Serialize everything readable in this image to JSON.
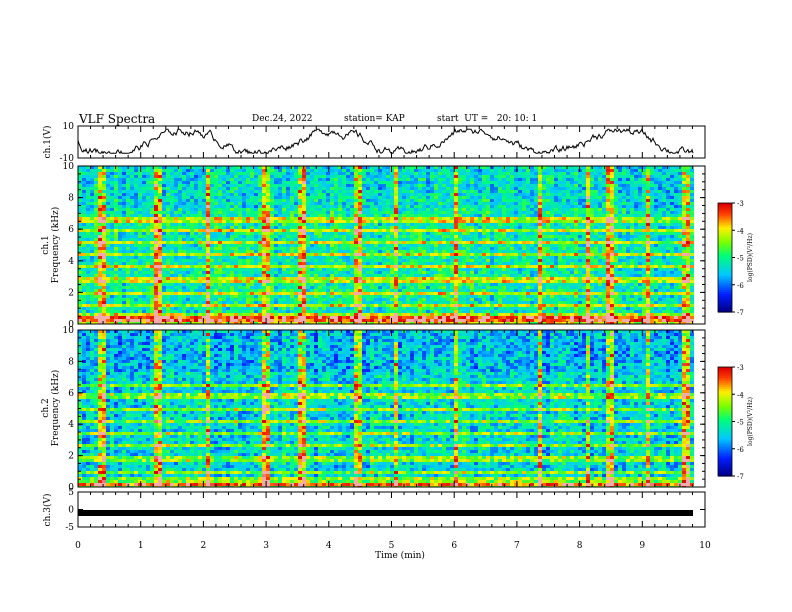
{
  "header": {
    "title": "VLF Spectra",
    "date": "Dec.24, 2022",
    "station": "station= KAP",
    "start": "start  UT =   20: 10: 1"
  },
  "chart_data": [
    {
      "type": "line",
      "panel": "ch1-waveform",
      "ylabel": "ch.1(V)",
      "ylim": [
        -10,
        10
      ],
      "yticks": [
        "10",
        "-10"
      ],
      "xlim": [
        0,
        9.85
      ],
      "description_note": "noisy waveform roughly between -6 and +7 V"
    },
    {
      "type": "heatmap",
      "panel": "ch1-spectrogram",
      "ylabel": "ch.1\nFrequency  (kHz)",
      "ylim": [
        0,
        10
      ],
      "yticks": [
        "0",
        "2",
        "4",
        "6",
        "8",
        "10"
      ],
      "xlim": [
        0,
        9.85
      ],
      "colorbar": {
        "label": "log(PSD)(V²/Hz)",
        "ticks": [
          "-3",
          "-4",
          "-5",
          "-6",
          "-7"
        ],
        "range": [
          -7,
          -3
        ]
      },
      "bands_khz": [
        0.4,
        1.2,
        2.0,
        2.9,
        3.7,
        4.5,
        5.3,
        6.0,
        6.7
      ],
      "impulse_times_min": [
        0.35,
        1.25,
        2.05,
        2.95,
        3.55,
        4.45,
        5.05,
        6.0,
        7.35,
        8.1,
        8.45,
        9.05,
        9.65
      ]
    },
    {
      "type": "heatmap",
      "panel": "ch2-spectrogram",
      "ylabel": "ch.2\nFrequency  (kHz)",
      "ylim": [
        0,
        10
      ],
      "yticks": [
        "0",
        "2",
        "4",
        "6",
        "8",
        "10"
      ],
      "xlim": [
        0,
        9.85
      ],
      "colorbar": {
        "label": "log(PSD)(V²/Hz)",
        "ticks": [
          "-3",
          "-4",
          "-5",
          "-6",
          "-7"
        ],
        "range": [
          -7,
          -3
        ]
      },
      "bands_khz": [
        0.3,
        1.0,
        1.9,
        2.8,
        3.5,
        4.2,
        5.0,
        5.9,
        6.5
      ],
      "impulse_times_min": [
        0.35,
        1.25,
        2.05,
        2.95,
        3.55,
        4.45,
        5.05,
        6.0,
        7.35,
        8.1,
        8.45,
        9.05,
        9.65
      ]
    },
    {
      "type": "line",
      "panel": "ch3-waveform",
      "ylabel": "ch.3(V)",
      "ylim": [
        -5,
        5
      ],
      "yticks": [
        "5",
        "0",
        "-5"
      ],
      "xlim": [
        0,
        9.85
      ],
      "values_note": "flat thick line near -1 V",
      "level": -1
    }
  ],
  "xaxis": {
    "label": "Time  (min)",
    "ticks": [
      "0",
      "1",
      "2",
      "3",
      "4",
      "5",
      "6",
      "7",
      "8",
      "9",
      "10"
    ],
    "range": [
      0,
      10
    ]
  }
}
